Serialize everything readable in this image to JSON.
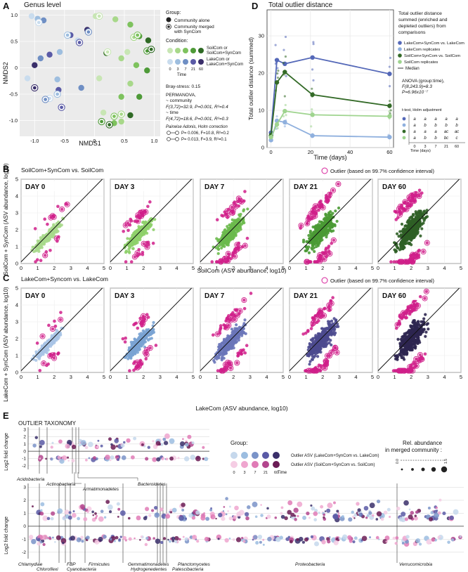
{
  "panel_letters": {
    "a": "A",
    "b": "B",
    "c": "C",
    "d": "D",
    "e": "E"
  },
  "panel_a": {
    "title": "Genus level",
    "xlabel": "NMDS1",
    "ylabel": "NMDS2",
    "xticks": [
      "-1.0",
      "-0.5",
      "0",
      "0.5",
      "1.0"
    ],
    "yticks": [
      "1.0",
      "0.5",
      "0",
      "-0.5",
      "-1.0"
    ],
    "legend_group_title": "Group:",
    "legend_alone": "Community alone",
    "legend_merged_1": "Community merged",
    "legend_merged_2": "with SynCom",
    "legend_condition_title": "Condition:",
    "cond_soil_1": "SoilCom or",
    "cond_soil_2": "SoilCom+SynCom",
    "cond_lake_1": "LakeCom or",
    "cond_lake_2": "LakeCom+SynCom",
    "time_ticks": [
      "0",
      "3",
      "7",
      "21",
      "60"
    ],
    "time_label": "Time",
    "stats_bray": "Bray-stress: 0.15",
    "stats_perm": "PERMANOVA,",
    "stats_comm": "~ community",
    "stats_f1": "F(3,72)=32.9, P=0.001, R²=0.4",
    "stats_time": "~ time",
    "stats_f2": "F(4,72)=18.6, P=0.001, R²=0.3",
    "stats_pairwise": "Pairwise Adonis, Holm correction",
    "stats_p1": "P= 0.006, F=10.8, R²=0.2",
    "stats_p2": "P= 0.013, F=3.9, R²=0.1",
    "colors": {
      "soil": [
        "#c8e6b4",
        "#a8d88a",
        "#7ec25e",
        "#4e9a38",
        "#2f6a25"
      ],
      "lake": [
        "#c9dcee",
        "#9ebedf",
        "#6f8fc4",
        "#5a5aa6",
        "#3a2f6a"
      ]
    }
  },
  "panel_d": {
    "title": "Total outlier distance",
    "ylabel": "Total outlier distance (summed)",
    "xlabel": "Time (days)",
    "legend_title_1": "Total outlier distance",
    "legend_title_2": "summed (enriched and",
    "legend_title_3": "depleted outliers) from",
    "legend_title_4": "comparisons",
    "median_label": "Median",
    "anova_1": "ANOVA (group:time),",
    "anova_2": "F(8,243.9)=8.3",
    "anova_3": "P=6.96x10⁻⁷",
    "ttest": "t-test, Holm adjustment",
    "time_days": "Time (days)",
    "letters": [
      [
        "a",
        "a",
        "a",
        "a",
        "a"
      ],
      [
        "a",
        "b",
        "b",
        "b",
        "b"
      ],
      [
        "a",
        "a",
        "a",
        "ac",
        "ac"
      ],
      [
        "a",
        "b",
        "b",
        "bc",
        "c"
      ]
    ],
    "letter_cols": [
      "0",
      "3",
      "7",
      "21",
      "60"
    ]
  },
  "chart_data": [
    {
      "type": "scatter",
      "title": "Genus level",
      "xlabel": "NMDS1",
      "ylabel": "NMDS2",
      "xlim": [
        -1.25,
        1.1
      ],
      "ylim": [
        -1.3,
        1.1
      ],
      "series": [
        {
          "name": "SoilCom alone",
          "points": [
            [
              0.02,
              0.98
            ],
            [
              0.35,
              0.92
            ],
            [
              0.6,
              0.82
            ],
            [
              0.75,
              0.6
            ],
            [
              0.9,
              0.52
            ],
            [
              0.55,
              0.3
            ],
            [
              0.45,
              0.18
            ],
            [
              0.7,
              0.05
            ],
            [
              0.88,
              -0.05
            ],
            [
              0.2,
              0.28
            ],
            [
              0.08,
              -0.2
            ],
            [
              0.6,
              -0.3
            ],
            [
              0.45,
              -0.55
            ],
            [
              0.75,
              -0.55
            ],
            [
              0.6,
              -0.9
            ],
            [
              0.15,
              -0.85
            ],
            [
              0.45,
              -1.02
            ],
            [
              0.33,
              -1.05
            ]
          ]
        },
        {
          "name": "SoilCom merged",
          "points": [
            [
              0.08,
              0.98
            ],
            [
              0.66,
              0.58
            ],
            [
              0.72,
              0.62
            ],
            [
              0.88,
              0.32
            ],
            [
              0.95,
              0.35
            ],
            [
              0.22,
              0.3
            ],
            [
              0.45,
              -0.88
            ],
            [
              0.33,
              -0.92
            ],
            [
              0.12,
              -1.02
            ],
            [
              0.25,
              -1.08
            ]
          ]
        },
        {
          "name": "LakeCom alone",
          "points": [
            [
              -1.05,
              0.98
            ],
            [
              -0.95,
              0.93
            ],
            [
              -0.85,
              0.9
            ],
            [
              -0.4,
              0.62
            ],
            [
              -0.12,
              0.72
            ],
            [
              -0.28,
              0.52
            ],
            [
              -0.58,
              0.3
            ],
            [
              -0.9,
              0.18
            ],
            [
              -0.75,
              0.25
            ],
            [
              -1.0,
              0.05
            ],
            [
              -1.12,
              -0.2
            ],
            [
              -0.62,
              -0.22
            ],
            [
              -0.22,
              -0.38
            ],
            [
              -0.6,
              -0.42
            ]
          ]
        },
        {
          "name": "LakeCom merged",
          "points": [
            [
              -0.93,
              0.86
            ],
            [
              -0.45,
              0.62
            ],
            [
              -0.1,
              0.68
            ],
            [
              -0.25,
              0.48
            ],
            [
              -1.0,
              -0.38
            ],
            [
              -0.75,
              -0.58
            ],
            [
              -0.62,
              -0.5
            ],
            [
              -0.82,
              -0.6
            ],
            [
              -0.55,
              -0.75
            ]
          ]
        }
      ]
    },
    {
      "type": "line",
      "title": "Total outlier distance",
      "xlabel": "Time (days)",
      "ylabel": "Total outlier distance (summed)",
      "x": [
        0,
        3,
        7,
        21,
        60
      ],
      "xlim": [
        -2,
        62
      ],
      "ylim": [
        0,
        37
      ],
      "xticks": [
        "0",
        "20",
        "40",
        "60"
      ],
      "yticks": [
        "0",
        "10",
        "20",
        "30"
      ],
      "series": [
        {
          "name": "LakeCom+SynCom vs. LakeCom",
          "color": "#5468b8",
          "values": [
            4,
            23.5,
            22.5,
            24.2,
            19.8
          ]
        },
        {
          "name": "LakeCom replicates",
          "color": "#8fb0de",
          "values": [
            2,
            7.2,
            6.8,
            3.2,
            2.8
          ]
        },
        {
          "name": "SoilCom+SynCom vs. SoilCom",
          "color": "#336a27",
          "values": [
            3.2,
            17.5,
            20.3,
            14.2,
            11.2
          ]
        },
        {
          "name": "SoilCom replicates",
          "color": "#9fd48f",
          "values": [
            2.8,
            6.2,
            9.8,
            8.8,
            8.4
          ]
        }
      ]
    },
    {
      "type": "scatter",
      "title": "SoilCom+SynCom vs. SoilCom",
      "xlabel": "SoilCom (ASV abundance, log10)",
      "ylabel": "SoilCom + SynCom (ASV abundance, log10)",
      "xlim": [
        0,
        5
      ],
      "ylim": [
        0,
        5
      ],
      "xticks": [
        "0",
        "1",
        "2",
        "3",
        "4",
        "5"
      ],
      "yticks": [
        "0",
        "1",
        "2",
        "3",
        "4",
        "5"
      ],
      "outlier_label": "Outlier (based on 99.7% confidence interval)",
      "facets": [
        "DAY 0",
        "DAY 3",
        "DAY 7",
        "DAY 21",
        "DAY 60"
      ]
    },
    {
      "type": "scatter",
      "title": "LakeCom+Syncom vs. LakeCom",
      "xlabel": "LakeCom (ASV abundance, log10)",
      "ylabel": "LakeCom + SynCom (ASV abundance, log10)",
      "xlim": [
        0,
        5
      ],
      "ylim": [
        0,
        5
      ],
      "xticks": [
        "0",
        "1",
        "2",
        "3",
        "4",
        "5"
      ],
      "yticks": [
        "0",
        "1",
        "2",
        "3",
        "4",
        "5"
      ],
      "outlier_label": "Outlier (based on 99.7% confidence interval)",
      "facets": [
        "DAY 0",
        "DAY 3",
        "DAY 7",
        "DAY 21",
        "DAY 60"
      ]
    },
    {
      "type": "scatter",
      "title": "OUTLIER TAXONOMY",
      "ylabel": "Log2 fold change",
      "yticks": [
        "3",
        "2",
        "1",
        "0",
        "-1",
        "-2"
      ],
      "phyla_top": [
        "Acidobacteria",
        "Actinobacteria",
        "Armatimonadetes",
        "Bacteroidetes"
      ],
      "phyla_bottom": [
        "Chlamydiae",
        "Chloroflexi",
        "FBP",
        "Cyanobacteria",
        "Firmicutes",
        "Gemmatimonadetes",
        "Hydrogenedentes",
        "Planctomycetes",
        "Patescibacteria",
        "Proteobacteria",
        "Verrucomicrobia"
      ]
    }
  ],
  "panel_e": {
    "group_title": "Group:",
    "lake_label": "Outlier ASV (LakeCom+SynCom vs. LakeCom)",
    "soil_label": "Outlier ASV (SoilCom+SynCom vs. SoilCom)",
    "time_ticks": [
      "0",
      "3",
      "7",
      "21",
      "60"
    ],
    "time_label": "Time",
    "rel_title_1": "Rel. abundance",
    "rel_title_2": "in merged community :",
    "rel_low": "0.0",
    "rel_high": "1.5"
  }
}
